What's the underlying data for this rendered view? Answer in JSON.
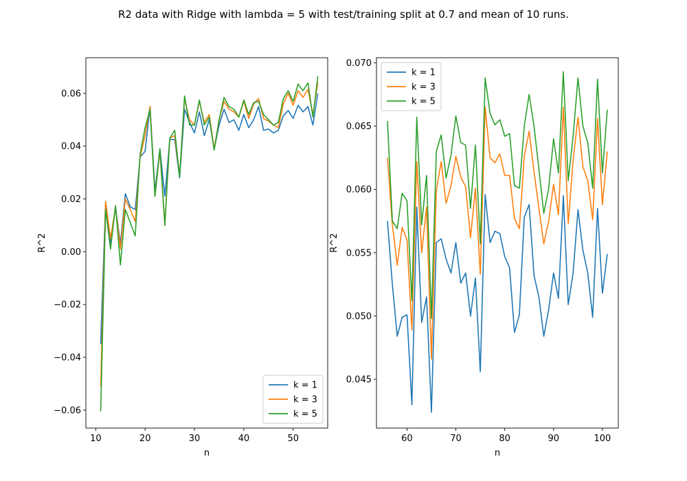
{
  "title": "R2 data with Ridge with lambda = 5 with test/training split at 0.7 and mean of 10 runs.",
  "chart_data": [
    {
      "type": "line",
      "xlabel": "n",
      "ylabel": "R^2",
      "xlim": [
        8,
        57
      ],
      "ylim": [
        -0.0668,
        0.0735
      ],
      "xticks": [
        10,
        20,
        30,
        40,
        50
      ],
      "yticks": [
        -0.06,
        -0.04,
        -0.02,
        0.0,
        0.02,
        0.04,
        0.06
      ],
      "ytick_labels": [
        "−0.06",
        "−0.04",
        "−0.02",
        "0.00",
        "0.02",
        "0.04",
        "0.06"
      ],
      "legend_position": "lower-right",
      "x": [
        11,
        12,
        13,
        14,
        15,
        16,
        17,
        18,
        19,
        20,
        21,
        22,
        23,
        24,
        25,
        26,
        27,
        28,
        29,
        30,
        31,
        32,
        33,
        34,
        35,
        36,
        37,
        38,
        39,
        40,
        41,
        42,
        43,
        44,
        45,
        46,
        47,
        48,
        49,
        50,
        51,
        52,
        53,
        54,
        55
      ],
      "series": [
        {
          "name": "k = 1",
          "color": "#1f77b4",
          "values": [
            -0.035,
            0.019,
            0.003,
            0.017,
            0.003,
            0.022,
            0.017,
            0.016,
            0.036,
            0.038,
            0.055,
            0.023,
            0.039,
            0.021,
            0.0425,
            0.0425,
            0.028,
            0.054,
            0.049,
            0.045,
            0.053,
            0.044,
            0.05,
            0.039,
            0.048,
            0.054,
            0.049,
            0.05,
            0.046,
            0.052,
            0.047,
            0.05,
            0.055,
            0.046,
            0.0465,
            0.045,
            0.046,
            0.0515,
            0.0535,
            0.0505,
            0.0555,
            0.053,
            0.055,
            0.048,
            0.06
          ]
        },
        {
          "name": "k = 3",
          "color": "#ff7f0e",
          "values": [
            -0.051,
            0.019,
            0.005,
            0.017,
            0.001,
            0.02,
            0.016,
            0.0115,
            0.036,
            0.044,
            0.055,
            0.021,
            0.038,
            0.01,
            0.043,
            0.044,
            0.029,
            0.058,
            0.05,
            0.048,
            0.057,
            0.049,
            0.052,
            0.039,
            0.05,
            0.057,
            0.054,
            0.053,
            0.051,
            0.057,
            0.0505,
            0.056,
            0.058,
            0.0505,
            0.0495,
            0.048,
            0.047,
            0.056,
            0.06,
            0.0555,
            0.061,
            0.0585,
            0.0615,
            0.052,
            0.064
          ]
        },
        {
          "name": "k = 5",
          "color": "#2ca02c",
          "values": [
            -0.0605,
            0.016,
            0.001,
            0.0175,
            -0.005,
            0.016,
            0.011,
            0.006,
            0.037,
            0.047,
            0.054,
            0.021,
            0.039,
            0.01,
            0.043,
            0.046,
            0.0285,
            0.059,
            0.048,
            0.048,
            0.0575,
            0.048,
            0.051,
            0.0385,
            0.05,
            0.0585,
            0.055,
            0.054,
            0.051,
            0.0575,
            0.052,
            0.0565,
            0.057,
            0.052,
            0.05,
            0.048,
            0.049,
            0.058,
            0.061,
            0.057,
            0.0635,
            0.061,
            0.064,
            0.051,
            0.0665
          ]
        }
      ]
    },
    {
      "type": "line",
      "xlabel": "n",
      "ylabel": "R^2",
      "xlim": [
        53.75,
        103.25
      ],
      "ylim": [
        0.04115,
        0.0704
      ],
      "xticks": [
        60,
        70,
        80,
        90,
        100
      ],
      "yticks": [
        0.045,
        0.05,
        0.055,
        0.06,
        0.065,
        0.07
      ],
      "ytick_labels": [
        "0.045",
        "0.050",
        "0.055",
        "0.060",
        "0.065",
        "0.070"
      ],
      "legend_position": "upper-left",
      "x": [
        56,
        57,
        58,
        59,
        60,
        61,
        62,
        63,
        64,
        65,
        66,
        67,
        68,
        69,
        70,
        71,
        72,
        73,
        74,
        75,
        76,
        77,
        78,
        79,
        80,
        81,
        82,
        83,
        84,
        85,
        86,
        87,
        88,
        89,
        90,
        91,
        92,
        93,
        94,
        95,
        96,
        97,
        98,
        99,
        100,
        101
      ],
      "series": [
        {
          "name": "k = 1",
          "color": "#1f77b4",
          "values": [
            0.0575,
            0.0525,
            0.0484,
            0.0499,
            0.0501,
            0.043,
            0.0586,
            0.0495,
            0.0515,
            0.0424,
            0.0558,
            0.0561,
            0.0545,
            0.0534,
            0.0558,
            0.0526,
            0.0534,
            0.05,
            0.053,
            0.0456,
            0.0596,
            0.0558,
            0.0567,
            0.0565,
            0.0547,
            0.0538,
            0.0487,
            0.0501,
            0.0578,
            0.0588,
            0.0532,
            0.0515,
            0.0484,
            0.0505,
            0.0534,
            0.0514,
            0.0595,
            0.0509,
            0.0534,
            0.0584,
            0.0552,
            0.0534,
            0.0499,
            0.0585,
            0.0518,
            0.0549
          ]
        },
        {
          "name": "k = 3",
          "color": "#ff7f0e",
          "values": [
            0.0625,
            0.0572,
            0.054,
            0.057,
            0.056,
            0.0489,
            0.0622,
            0.055,
            0.0586,
            0.0466,
            0.0599,
            0.0622,
            0.0589,
            0.0603,
            0.0626,
            0.061,
            0.0602,
            0.0562,
            0.0601,
            0.0533,
            0.0665,
            0.0625,
            0.0621,
            0.0628,
            0.0611,
            0.0611,
            0.0577,
            0.0569,
            0.0626,
            0.0646,
            0.0614,
            0.0585,
            0.0557,
            0.0575,
            0.0604,
            0.058,
            0.0665,
            0.0573,
            0.0623,
            0.0657,
            0.0618,
            0.0607,
            0.0576,
            0.0656,
            0.0588,
            0.063
          ]
        },
        {
          "name": "k = 5",
          "color": "#2ca02c",
          "values": [
            0.0654,
            0.0575,
            0.0569,
            0.0597,
            0.0591,
            0.0512,
            0.0657,
            0.0572,
            0.0611,
            0.0498,
            0.063,
            0.0643,
            0.0609,
            0.0627,
            0.0658,
            0.0637,
            0.0635,
            0.0585,
            0.0635,
            0.0557,
            0.0688,
            0.066,
            0.0651,
            0.0655,
            0.0642,
            0.0644,
            0.0603,
            0.0601,
            0.065,
            0.0675,
            0.065,
            0.0616,
            0.0581,
            0.0601,
            0.064,
            0.0613,
            0.0693,
            0.0607,
            0.0642,
            0.0688,
            0.065,
            0.0637,
            0.0601,
            0.0687,
            0.0613,
            0.0663
          ]
        }
      ]
    }
  ]
}
